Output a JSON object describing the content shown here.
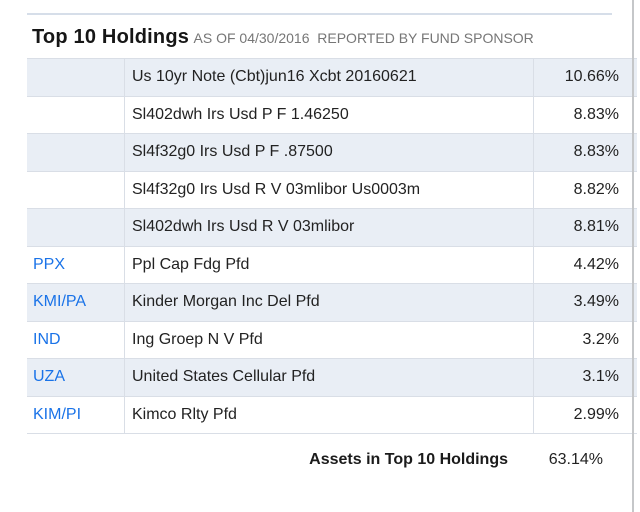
{
  "header": {
    "title": "Top 10 Holdings",
    "subtitle": "AS OF 04/30/2016  REPORTED BY FUND SPONSOR"
  },
  "table": {
    "rows": [
      {
        "ticker": "",
        "name": "Us 10yr Note (Cbt)jun16 Xcbt 20160621",
        "weight": "10.66%"
      },
      {
        "ticker": "",
        "name": "Sl402dwh Irs Usd P F 1.46250",
        "weight": "8.83%"
      },
      {
        "ticker": "",
        "name": "Sl4f32g0 Irs Usd P F .87500",
        "weight": "8.83%"
      },
      {
        "ticker": "",
        "name": "Sl4f32g0 Irs Usd R V 03mlibor Us0003m",
        "weight": "8.82%"
      },
      {
        "ticker": "",
        "name": "Sl402dwh Irs Usd R V 03mlibor",
        "weight": "8.81%"
      },
      {
        "ticker": "PPX",
        "name": "Ppl Cap Fdg Pfd",
        "weight": "4.42%"
      },
      {
        "ticker": "KMI/PA",
        "name": "Kinder Morgan Inc Del Pfd",
        "weight": "3.49%"
      },
      {
        "ticker": "IND",
        "name": "Ing Groep N V Pfd",
        "weight": "3.2%"
      },
      {
        "ticker": "UZA",
        "name": "United States Cellular Pfd",
        "weight": "3.1%"
      },
      {
        "ticker": "KIM/PI",
        "name": "Kimco Rlty Pfd",
        "weight": "2.99%"
      }
    ],
    "footer": {
      "label": "Assets in Top 10 Holdings",
      "value": "63.14%"
    }
  },
  "colors": {
    "link_blue": "#1a73e8",
    "row_stripe": "#e9eef5",
    "row_border": "#d9dee6",
    "subtitle_gray": "#767676",
    "top_line": "#d6dee9"
  }
}
